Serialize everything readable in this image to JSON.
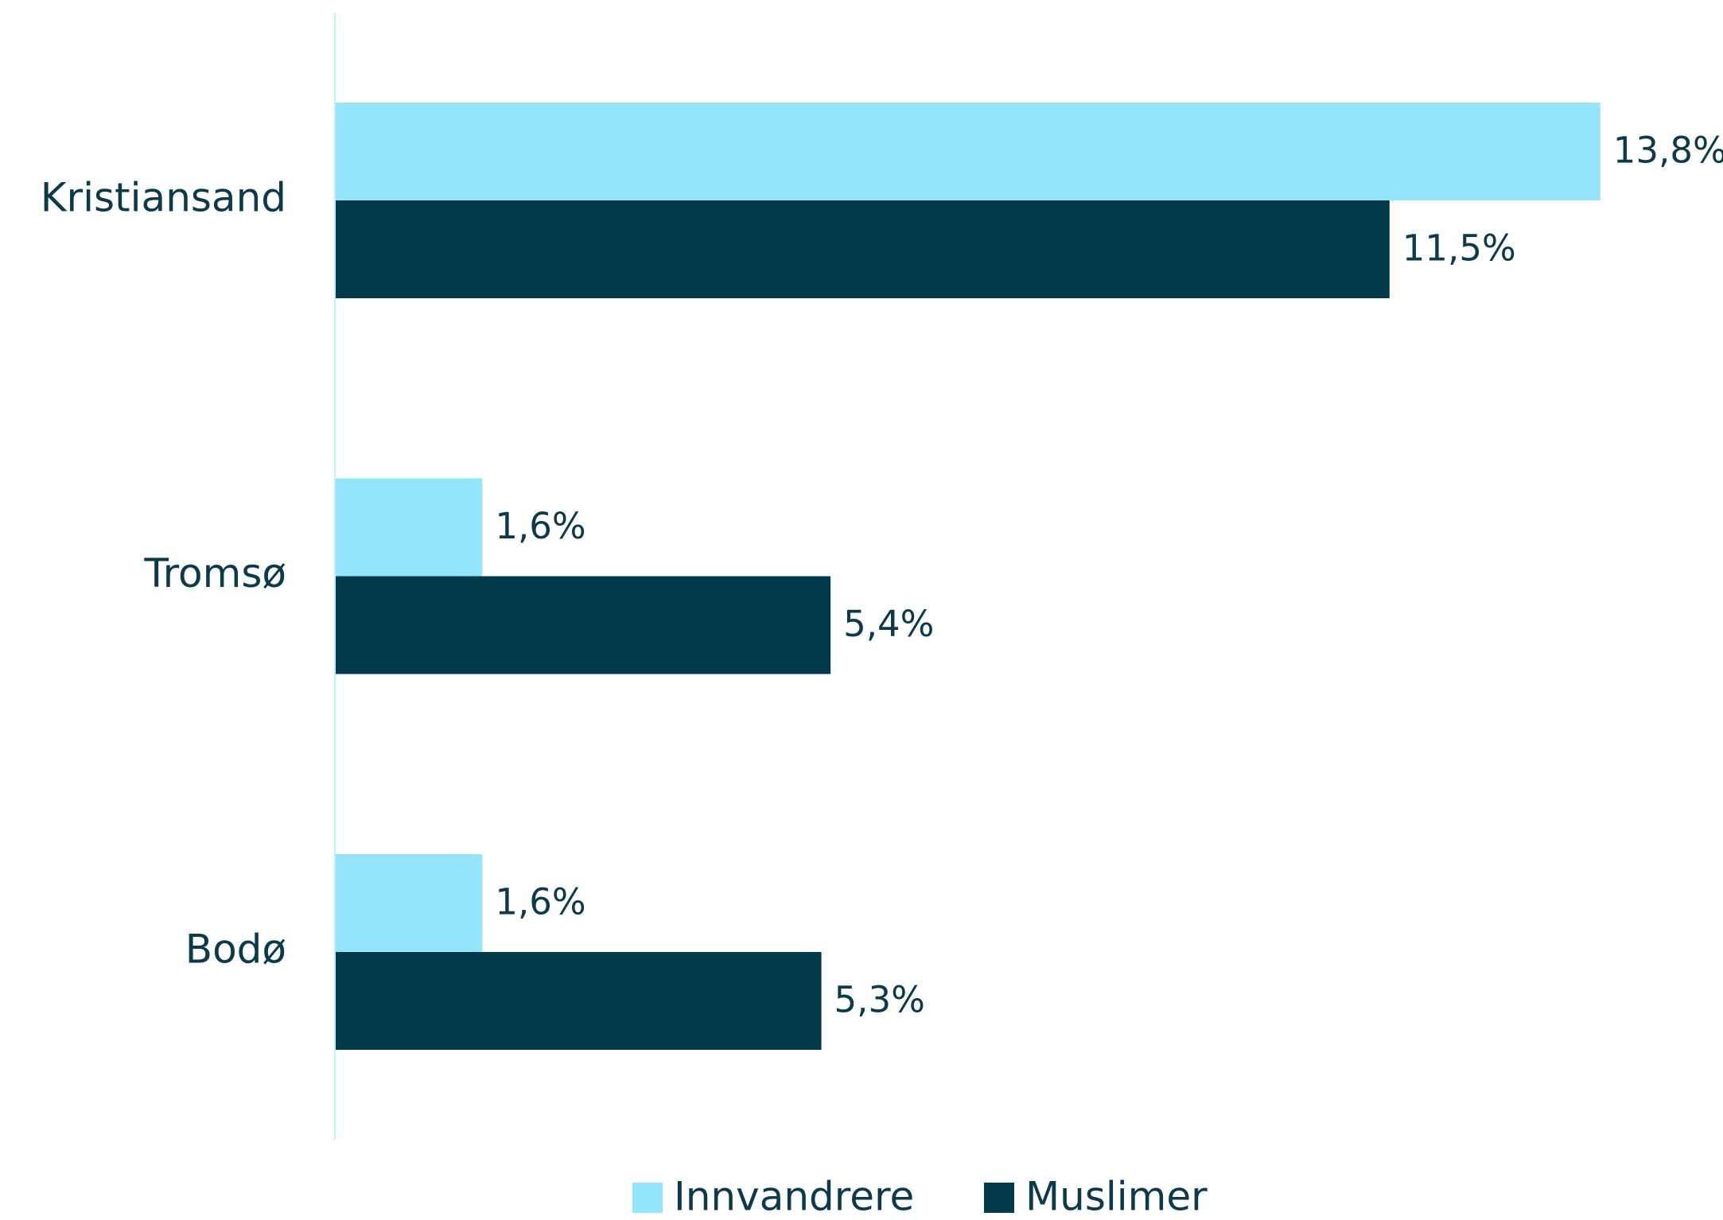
{
  "chart_data": {
    "type": "bar",
    "orientation": "horizontal",
    "categories": [
      "Kristiansand",
      "Tromsø",
      "Bodø"
    ],
    "series": [
      {
        "name": "Innvandrere",
        "color": "#94e4fc",
        "values": [
          13.8,
          1.6,
          1.6
        ],
        "value_labels": [
          "13,8%",
          "1,6%",
          "1,6%"
        ]
      },
      {
        "name": "Muslimer",
        "color": "#003a4a",
        "values": [
          11.5,
          5.4,
          5.3
        ],
        "value_labels": [
          "11,5%",
          "5,4%",
          "5,3%"
        ]
      }
    ],
    "xlim": [
      0,
      15
    ],
    "legend": "bottom"
  }
}
